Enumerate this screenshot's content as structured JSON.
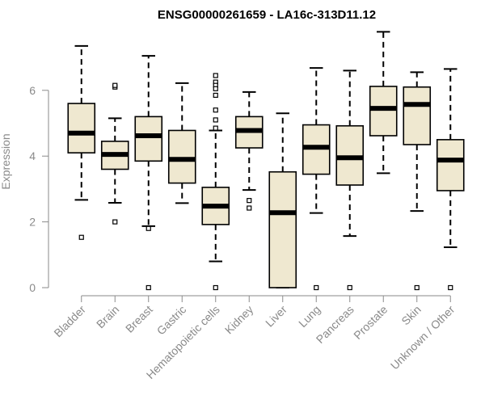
{
  "chart_data": {
    "type": "box",
    "title": "ENSG00000261659 - LA16c-313D11.12",
    "xlabel": "",
    "ylabel": "Expression",
    "ylim": [
      0,
      7.8
    ],
    "yticks": [
      0,
      2,
      4,
      6
    ],
    "box_fill": "#efe8d0",
    "categories": [
      "Bladder",
      "Brain",
      "Breast",
      "Gastric",
      "Hematopoietic cells",
      "Kidney",
      "Liver",
      "Lung",
      "Pancreas",
      "Prostate",
      "Skin",
      "Unknown / Other"
    ],
    "boxes": [
      {
        "whisker_low": 2.67,
        "q1": 4.1,
        "median": 4.7,
        "q3": 5.6,
        "whisker_high": 7.35,
        "outliers": [
          1.53
        ]
      },
      {
        "whisker_low": 2.58,
        "q1": 3.6,
        "median": 4.05,
        "q3": 4.45,
        "whisker_high": 5.15,
        "outliers": [
          6.1,
          6.15,
          2.0
        ]
      },
      {
        "whisker_low": 1.87,
        "q1": 3.85,
        "median": 4.62,
        "q3": 5.2,
        "whisker_high": 7.05,
        "outliers": [
          1.8,
          0.0
        ]
      },
      {
        "whisker_low": 2.57,
        "q1": 3.18,
        "median": 3.9,
        "q3": 4.78,
        "whisker_high": 6.22,
        "outliers": []
      },
      {
        "whisker_low": 0.8,
        "q1": 1.92,
        "median": 2.48,
        "q3": 3.05,
        "whisker_high": 4.78,
        "outliers": [
          6.45,
          6.25,
          6.15,
          6.05,
          5.85,
          5.4,
          5.1,
          4.85,
          0.0
        ]
      },
      {
        "whisker_low": 2.97,
        "q1": 4.25,
        "median": 4.78,
        "q3": 5.2,
        "whisker_high": 5.95,
        "outliers": [
          2.65,
          2.42
        ]
      },
      {
        "whisker_low": 0.0,
        "q1": 0.0,
        "median": 2.28,
        "q3": 3.52,
        "whisker_high": 5.3,
        "outliers": []
      },
      {
        "whisker_low": 2.27,
        "q1": 3.45,
        "median": 4.27,
        "q3": 4.95,
        "whisker_high": 6.68,
        "outliers": [
          0.0
        ]
      },
      {
        "whisker_low": 1.57,
        "q1": 3.12,
        "median": 3.95,
        "q3": 4.92,
        "whisker_high": 6.6,
        "outliers": [
          0.0
        ]
      },
      {
        "whisker_low": 3.48,
        "q1": 4.62,
        "median": 5.45,
        "q3": 6.12,
        "whisker_high": 7.78,
        "outliers": []
      },
      {
        "whisker_low": 2.33,
        "q1": 4.35,
        "median": 5.57,
        "q3": 6.1,
        "whisker_high": 6.55,
        "outliers": [
          0.0
        ]
      },
      {
        "whisker_low": 1.23,
        "q1": 2.95,
        "median": 3.88,
        "q3": 4.5,
        "whisker_high": 6.65,
        "outliers": [
          0.0
        ]
      }
    ]
  }
}
